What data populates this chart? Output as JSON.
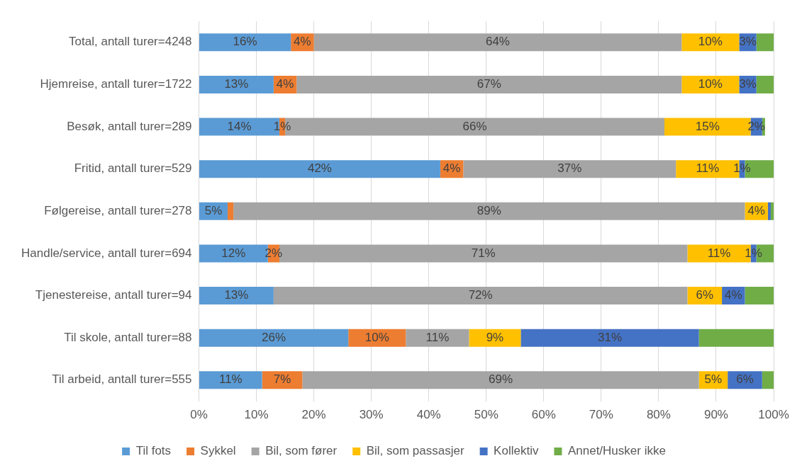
{
  "chart_data": {
    "type": "bar",
    "orientation": "horizontal",
    "stacked": true,
    "grid": "x",
    "legend": "bottom",
    "categories": [
      "Total, antall turer=4248",
      "Hjemreise, antall turer=1722",
      "Besøk, antall turer=289",
      "Fritid, antall turer=529",
      "Følgereise, antall turer=278",
      "Handle/service, antall turer=694",
      "Tjenestereise, antall turer=94",
      "Til skole, antall turer=88",
      "Til arbeid, antall turer=555"
    ],
    "xlim": [
      0,
      100
    ],
    "xticks": [
      {
        "value": 0,
        "label": "0%"
      },
      {
        "value": 10,
        "label": "10%"
      },
      {
        "value": 20,
        "label": "20%"
      },
      {
        "value": 30,
        "label": "30%"
      },
      {
        "value": 40,
        "label": "40%"
      },
      {
        "value": 50,
        "label": "50%"
      },
      {
        "value": 60,
        "label": "60%"
      },
      {
        "value": 70,
        "label": "70%"
      },
      {
        "value": 80,
        "label": "80%"
      },
      {
        "value": 90,
        "label": "90%"
      },
      {
        "value": 100,
        "label": "100%"
      }
    ],
    "series": [
      {
        "name": "Til fots",
        "color": "#5b9bd5",
        "values": [
          16,
          13,
          14,
          42,
          5,
          12,
          13,
          26,
          11
        ],
        "value_labels": [
          "16%",
          "13%",
          "14%",
          "42%",
          "5%",
          "12%",
          "13%",
          "26%",
          "11%"
        ]
      },
      {
        "name": "Sykkel",
        "color": "#ed7d31",
        "values": [
          4,
          4,
          1,
          4,
          1,
          2,
          0,
          10,
          7
        ],
        "value_labels": [
          "4%",
          "4%",
          "1%",
          "4%",
          null,
          "2%",
          null,
          "10%",
          "7%"
        ]
      },
      {
        "name": "Bil, som fører",
        "color": "#a5a5a5",
        "values": [
          64,
          67,
          66,
          37,
          89,
          71,
          72,
          11,
          69
        ],
        "value_labels": [
          "64%",
          "67%",
          "66%",
          "37%",
          "89%",
          "71%",
          "72%",
          "11%",
          "69%"
        ]
      },
      {
        "name": "Bil, som passasjer",
        "color": "#ffc000",
        "values": [
          10,
          10,
          15,
          11,
          4,
          11,
          6,
          9,
          5
        ],
        "value_labels": [
          "10%",
          "10%",
          "15%",
          "11%",
          "4%",
          "11%",
          "6%",
          "9%",
          "5%"
        ]
      },
      {
        "name": "Kollektiv",
        "color": "#4472c4",
        "values": [
          3,
          3,
          2,
          1,
          0.5,
          1,
          4,
          31,
          6
        ],
        "value_labels": [
          "3%",
          "3%",
          "2%",
          "1%",
          null,
          "1%",
          "4%",
          "31%",
          "6%"
        ]
      },
      {
        "name": "Annet/Husker ikke",
        "color": "#70ad47",
        "values": [
          3,
          3,
          0.5,
          5,
          0.5,
          3,
          5,
          13,
          2
        ],
        "value_labels": [
          null,
          null,
          null,
          null,
          null,
          null,
          null,
          null,
          null
        ]
      }
    ]
  }
}
